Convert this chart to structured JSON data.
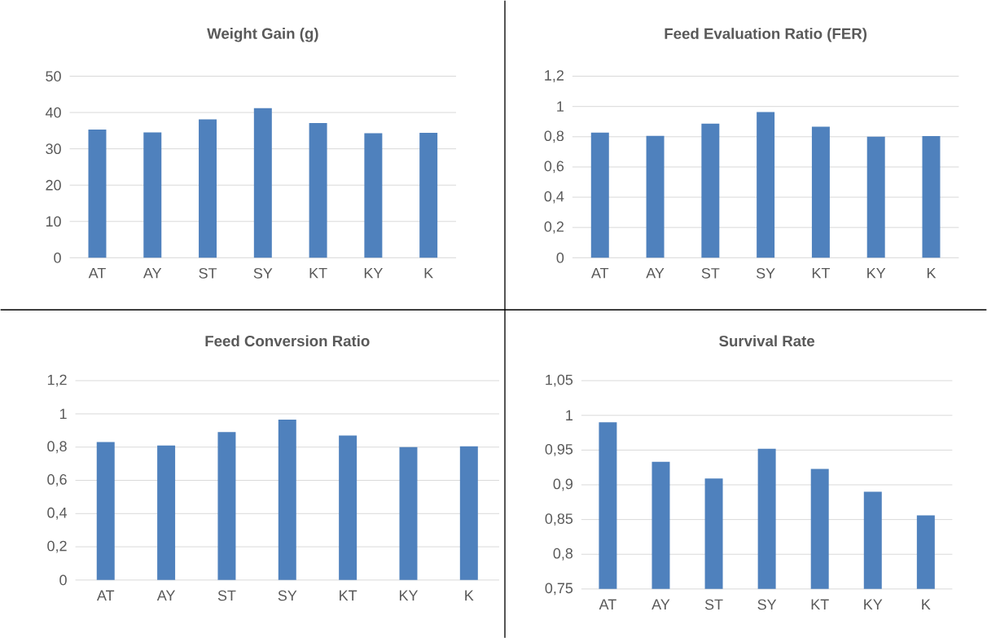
{
  "chart_data": [
    {
      "type": "bar",
      "title": "Weight Gain (g)",
      "categories": [
        "AT",
        "AY",
        "ST",
        "SY",
        "KT",
        "KY",
        "K"
      ],
      "values": [
        35.3,
        34.5,
        38.1,
        41.2,
        37.1,
        34.3,
        34.4
      ],
      "color": "#4f81bd",
      "ylim": [
        0,
        50
      ],
      "yticks": [
        0,
        10,
        20,
        30,
        40,
        50
      ],
      "grid": "y"
    },
    {
      "type": "bar",
      "title": "Feed Evaluation Ratio (FER)",
      "categories": [
        "AT",
        "AY",
        "ST",
        "SY",
        "KT",
        "KY",
        "K"
      ],
      "values": [
        0.827,
        0.806,
        0.886,
        0.963,
        0.866,
        0.8,
        0.804
      ],
      "color": "#4f81bd",
      "ylim": [
        0,
        1.2
      ],
      "yticks": [
        0,
        {
          "value": 0.2,
          "label": "0,2"
        },
        {
          "value": 0.4,
          "label": "0,4"
        },
        {
          "value": 0.6,
          "label": "0,6"
        },
        {
          "value": 0.8,
          "label": "0,8"
        },
        1,
        {
          "value": 1.2,
          "label": "1,2"
        }
      ],
      "grid": "y"
    },
    {
      "type": "bar",
      "title": "Feed Conversion Ratio",
      "categories": [
        "AT",
        "AY",
        "ST",
        "SY",
        "KT",
        "KY",
        "K"
      ],
      "values": [
        0.83,
        0.81,
        0.89,
        0.965,
        0.87,
        0.8,
        0.805
      ],
      "color": "#4f81bd",
      "ylim": [
        0,
        1.2
      ],
      "yticks": [
        0,
        {
          "value": 0.2,
          "label": "0,2"
        },
        {
          "value": 0.4,
          "label": "0,4"
        },
        {
          "value": 0.6,
          "label": "0,6"
        },
        {
          "value": 0.8,
          "label": "0,8"
        },
        1,
        {
          "value": 1.2,
          "label": "1,2"
        }
      ],
      "grid": "y"
    },
    {
      "type": "bar",
      "title": "Survival Rate",
      "categories": [
        "AT",
        "AY",
        "ST",
        "SY",
        "KT",
        "KY",
        "K"
      ],
      "values": [
        0.99,
        0.933,
        0.909,
        0.952,
        0.923,
        0.89,
        0.856
      ],
      "color": "#4f81bd",
      "ylim": [
        0.75,
        1.05
      ],
      "yticks": [
        {
          "value": 0.75,
          "label": "0,75"
        },
        {
          "value": 0.8,
          "label": "0,8"
        },
        {
          "value": 0.85,
          "label": "0,85"
        },
        {
          "value": 0.9,
          "label": "0,9"
        },
        {
          "value": 0.95,
          "label": "0,95"
        },
        1,
        {
          "value": 1.05,
          "label": "1,05"
        }
      ],
      "grid": "y"
    }
  ]
}
